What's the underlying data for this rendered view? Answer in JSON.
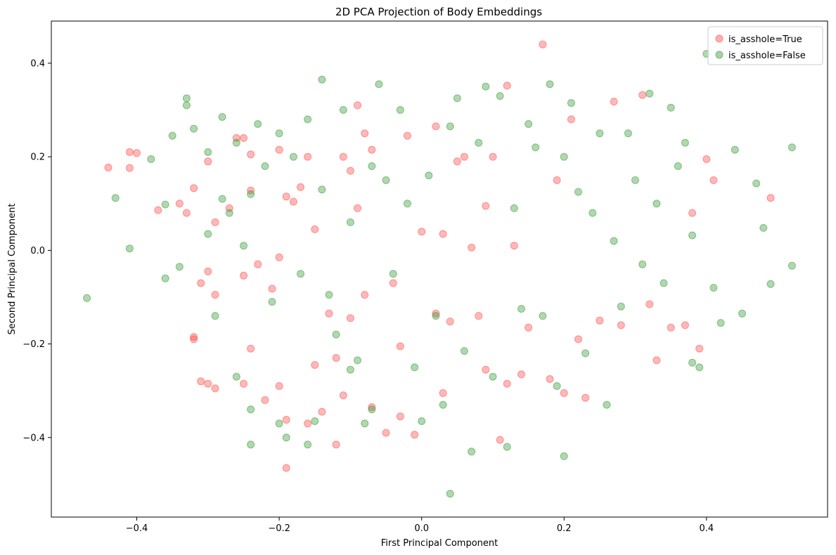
{
  "chart_data": {
    "type": "scatter",
    "title": "2D PCA Projection of Body Embeddings",
    "xlabel": "First Principal Component",
    "ylabel": "Second Principal Component",
    "xlim": [
      -0.52,
      0.57
    ],
    "ylim": [
      -0.57,
      0.49
    ],
    "xticks": [
      -0.4,
      -0.2,
      0.0,
      0.2,
      0.4
    ],
    "yticks": [
      -0.4,
      -0.2,
      0.0,
      0.2,
      0.4
    ],
    "xtick_labels": [
      "−0.4",
      "−0.2",
      "0.0",
      "0.2",
      "0.4"
    ],
    "ytick_labels": [
      "−0.4",
      "−0.2",
      "0.0",
      "0.2",
      "0.4"
    ],
    "grid": false,
    "legend_position": "top-right",
    "series": [
      {
        "name": "is_asshole=True",
        "color": "#ff4d4d",
        "points": [
          [
            -0.44,
            0.177
          ],
          [
            -0.41,
            0.21
          ],
          [
            -0.4,
            0.208
          ],
          [
            -0.41,
            0.176
          ],
          [
            -0.37,
            0.086
          ],
          [
            -0.34,
            0.1
          ],
          [
            -0.33,
            0.08
          ],
          [
            -0.32,
            0.133
          ],
          [
            -0.3,
            0.19
          ],
          [
            -0.29,
            0.06
          ],
          [
            -0.29,
            -0.095
          ],
          [
            -0.31,
            -0.07
          ],
          [
            -0.3,
            -0.045
          ],
          [
            -0.32,
            -0.185
          ],
          [
            -0.32,
            -0.19
          ],
          [
            -0.31,
            -0.28
          ],
          [
            -0.3,
            -0.285
          ],
          [
            -0.29,
            -0.295
          ],
          [
            -0.27,
            0.09
          ],
          [
            -0.26,
            0.24
          ],
          [
            -0.25,
            0.24
          ],
          [
            -0.24,
            0.205
          ],
          [
            -0.24,
            0.128
          ],
          [
            -0.23,
            -0.03
          ],
          [
            -0.25,
            -0.054
          ],
          [
            -0.25,
            -0.285
          ],
          [
            -0.24,
            -0.21
          ],
          [
            -0.22,
            -0.32
          ],
          [
            -0.2,
            -0.29
          ],
          [
            -0.19,
            -0.465
          ],
          [
            -0.19,
            -0.362
          ],
          [
            -0.2,
            -0.015
          ],
          [
            -0.21,
            -0.082
          ],
          [
            -0.19,
            0.115
          ],
          [
            -0.18,
            0.104
          ],
          [
            -0.2,
            0.215
          ],
          [
            -0.17,
            0.135
          ],
          [
            -0.16,
            0.2
          ],
          [
            -0.15,
            0.045
          ],
          [
            -0.15,
            -0.245
          ],
          [
            -0.16,
            -0.37
          ],
          [
            -0.14,
            -0.345
          ],
          [
            -0.12,
            -0.415
          ],
          [
            -0.11,
            -0.31
          ],
          [
            -0.12,
            -0.23
          ],
          [
            -0.13,
            -0.135
          ],
          [
            -0.1,
            -0.145
          ],
          [
            -0.11,
            0.2
          ],
          [
            -0.1,
            0.17
          ],
          [
            -0.09,
            0.31
          ],
          [
            -0.09,
            0.09
          ],
          [
            -0.08,
            0.25
          ],
          [
            -0.07,
            0.215
          ],
          [
            -0.08,
            -0.095
          ],
          [
            -0.07,
            -0.335
          ],
          [
            -0.05,
            -0.39
          ],
          [
            -0.04,
            -0.07
          ],
          [
            -0.03,
            -0.355
          ],
          [
            -0.03,
            -0.205
          ],
          [
            -0.02,
            0.245
          ],
          [
            -0.01,
            -0.394
          ],
          [
            0.0,
            0.04
          ],
          [
            0.02,
            -0.135
          ],
          [
            0.02,
            0.265
          ],
          [
            0.03,
            0.035
          ],
          [
            0.03,
            -0.305
          ],
          [
            0.04,
            -0.152
          ],
          [
            0.05,
            0.19
          ],
          [
            0.06,
            0.2
          ],
          [
            0.07,
            0.006
          ],
          [
            0.08,
            -0.14
          ],
          [
            0.09,
            0.095
          ],
          [
            0.09,
            -0.255
          ],
          [
            0.1,
            0.2
          ],
          [
            0.11,
            -0.405
          ],
          [
            0.12,
            0.352
          ],
          [
            0.12,
            -0.285
          ],
          [
            0.13,
            0.01
          ],
          [
            0.14,
            -0.265
          ],
          [
            0.15,
            -0.165
          ],
          [
            0.17,
            0.44
          ],
          [
            0.18,
            -0.275
          ],
          [
            0.19,
            0.15
          ],
          [
            0.2,
            -0.305
          ],
          [
            0.21,
            0.28
          ],
          [
            0.22,
            -0.19
          ],
          [
            0.23,
            -0.315
          ],
          [
            0.25,
            -0.15
          ],
          [
            0.27,
            0.318
          ],
          [
            0.28,
            -0.16
          ],
          [
            0.31,
            0.332
          ],
          [
            0.32,
            -0.115
          ],
          [
            0.33,
            -0.235
          ],
          [
            0.35,
            -0.165
          ],
          [
            0.37,
            -0.16
          ],
          [
            0.38,
            0.08
          ],
          [
            0.39,
            -0.21
          ],
          [
            0.4,
            0.195
          ],
          [
            0.41,
            0.15
          ],
          [
            0.49,
            0.112
          ]
        ]
      },
      {
        "name": "is_asshole=False",
        "color": "#3a9a3a",
        "points": [
          [
            -0.47,
            -0.102
          ],
          [
            -0.43,
            0.112
          ],
          [
            -0.41,
            0.004
          ],
          [
            -0.38,
            0.195
          ],
          [
            -0.36,
            0.098
          ],
          [
            -0.36,
            -0.06
          ],
          [
            -0.35,
            0.245
          ],
          [
            -0.34,
            -0.035
          ],
          [
            -0.33,
            0.31
          ],
          [
            -0.33,
            0.325
          ],
          [
            -0.32,
            0.26
          ],
          [
            -0.3,
            0.21
          ],
          [
            -0.3,
            0.035
          ],
          [
            -0.29,
            -0.14
          ],
          [
            -0.28,
            0.285
          ],
          [
            -0.28,
            0.11
          ],
          [
            -0.27,
            0.08
          ],
          [
            -0.26,
            0.23
          ],
          [
            -0.26,
            -0.27
          ],
          [
            -0.25,
            0.01
          ],
          [
            -0.24,
            0.12
          ],
          [
            -0.24,
            -0.34
          ],
          [
            -0.24,
            -0.415
          ],
          [
            -0.23,
            0.27
          ],
          [
            -0.22,
            0.18
          ],
          [
            -0.21,
            -0.11
          ],
          [
            -0.2,
            -0.37
          ],
          [
            -0.2,
            0.25
          ],
          [
            -0.19,
            -0.4
          ],
          [
            -0.18,
            0.2
          ],
          [
            -0.17,
            -0.05
          ],
          [
            -0.16,
            0.28
          ],
          [
            -0.16,
            -0.415
          ],
          [
            -0.15,
            -0.365
          ],
          [
            -0.14,
            0.365
          ],
          [
            -0.14,
            0.13
          ],
          [
            -0.13,
            -0.095
          ],
          [
            -0.12,
            -0.18
          ],
          [
            -0.11,
            0.3
          ],
          [
            -0.1,
            0.06
          ],
          [
            -0.1,
            -0.255
          ],
          [
            -0.09,
            -0.235
          ],
          [
            -0.08,
            -0.37
          ],
          [
            -0.07,
            0.18
          ],
          [
            -0.07,
            -0.34
          ],
          [
            -0.06,
            0.355
          ],
          [
            -0.05,
            0.15
          ],
          [
            -0.04,
            -0.05
          ],
          [
            -0.03,
            0.3
          ],
          [
            -0.02,
            0.1
          ],
          [
            -0.01,
            -0.25
          ],
          [
            0.0,
            -0.365
          ],
          [
            0.01,
            0.16
          ],
          [
            0.02,
            -0.14
          ],
          [
            0.03,
            -0.33
          ],
          [
            0.04,
            0.265
          ],
          [
            0.04,
            -0.52
          ],
          [
            0.05,
            0.325
          ],
          [
            0.06,
            -0.215
          ],
          [
            0.07,
            -0.43
          ],
          [
            0.08,
            0.23
          ],
          [
            0.09,
            0.35
          ],
          [
            0.1,
            -0.27
          ],
          [
            0.11,
            0.33
          ],
          [
            0.12,
            -0.42
          ],
          [
            0.13,
            0.09
          ],
          [
            0.14,
            -0.125
          ],
          [
            0.15,
            0.27
          ],
          [
            0.16,
            0.22
          ],
          [
            0.17,
            -0.14
          ],
          [
            0.18,
            0.355
          ],
          [
            0.19,
            -0.29
          ],
          [
            0.2,
            0.2
          ],
          [
            0.2,
            -0.44
          ],
          [
            0.21,
            0.315
          ],
          [
            0.22,
            0.125
          ],
          [
            0.23,
            -0.22
          ],
          [
            0.24,
            0.08
          ],
          [
            0.25,
            0.25
          ],
          [
            0.26,
            -0.33
          ],
          [
            0.27,
            0.02
          ],
          [
            0.28,
            -0.12
          ],
          [
            0.29,
            0.25
          ],
          [
            0.3,
            0.15
          ],
          [
            0.31,
            -0.03
          ],
          [
            0.32,
            0.335
          ],
          [
            0.33,
            0.1
          ],
          [
            0.34,
            -0.07
          ],
          [
            0.35,
            0.305
          ],
          [
            0.36,
            0.18
          ],
          [
            0.37,
            0.23
          ],
          [
            0.38,
            0.032
          ],
          [
            0.38,
            -0.24
          ],
          [
            0.39,
            -0.25
          ],
          [
            0.4,
            0.42
          ],
          [
            0.41,
            -0.08
          ],
          [
            0.42,
            -0.155
          ],
          [
            0.44,
            0.215
          ],
          [
            0.45,
            -0.135
          ],
          [
            0.47,
            0.143
          ],
          [
            0.48,
            0.048
          ],
          [
            0.49,
            -0.072
          ],
          [
            0.52,
            0.22
          ],
          [
            0.52,
            -0.033
          ]
        ]
      }
    ]
  }
}
